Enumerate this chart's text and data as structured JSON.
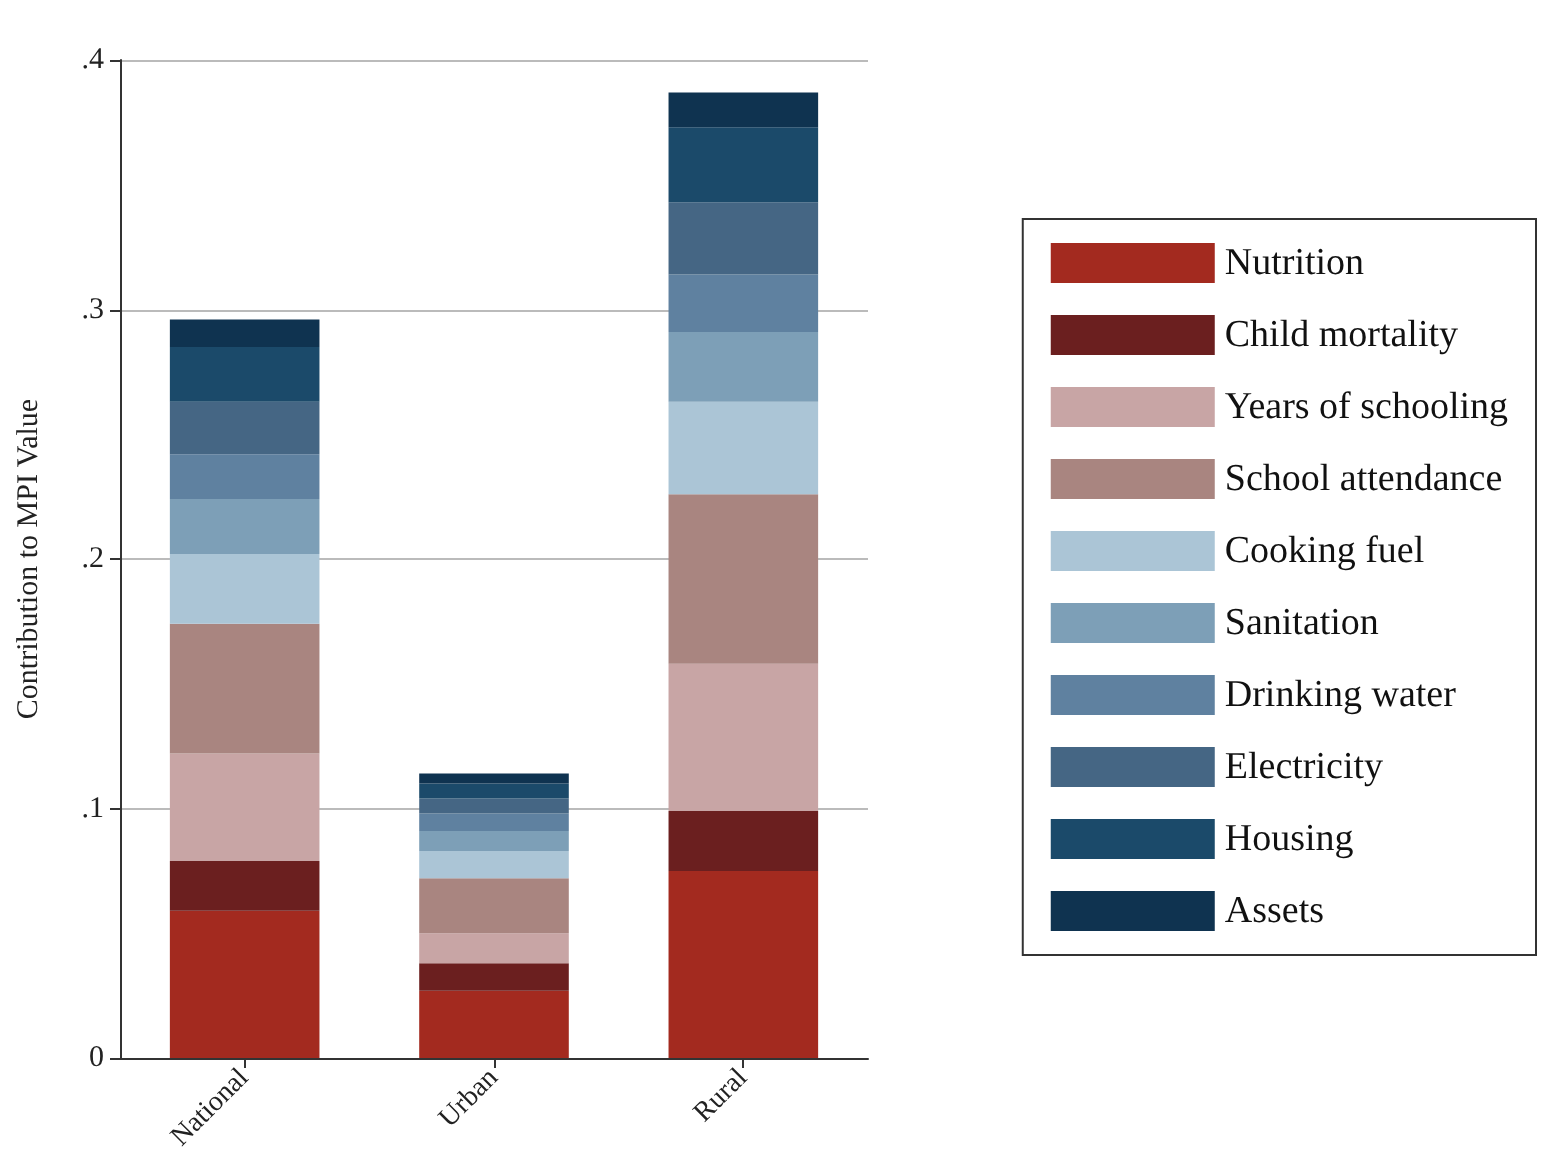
{
  "chart_data": {
    "type": "bar",
    "stacked": true,
    "ylabel": "Contribution to MPI Value",
    "categories": [
      "National",
      "Urban",
      "Rural"
    ],
    "series": [
      {
        "name": "Nutrition",
        "color": "#a32a1f",
        "values": [
          0.059,
          0.027,
          0.075
        ]
      },
      {
        "name": "Child mortality",
        "color": "#6b1f1f",
        "values": [
          0.02,
          0.011,
          0.024
        ]
      },
      {
        "name": "Years of schooling",
        "color": "#c8a5a5",
        "values": [
          0.043,
          0.012,
          0.059
        ]
      },
      {
        "name": "School attendance",
        "color": "#a98580",
        "values": [
          0.052,
          0.022,
          0.068
        ]
      },
      {
        "name": "Cooking fuel",
        "color": "#abc5d6",
        "values": [
          0.028,
          0.011,
          0.037
        ]
      },
      {
        "name": "Sanitation",
        "color": "#7d9fb7",
        "values": [
          0.022,
          0.008,
          0.028
        ]
      },
      {
        "name": "Drinking water",
        "color": "#5f81a0",
        "values": [
          0.018,
          0.007,
          0.023
        ]
      },
      {
        "name": "Electricity",
        "color": "#456684",
        "values": [
          0.021,
          0.006,
          0.029
        ]
      },
      {
        "name": "Housing",
        "color": "#1b4a6a",
        "values": [
          0.022,
          0.006,
          0.03
        ]
      },
      {
        "name": "Assets",
        "color": "#0f3350",
        "values": [
          0.011,
          0.004,
          0.014
        ]
      }
    ],
    "ylim": [
      0,
      0.4
    ],
    "yticks": [
      {
        "value": 0,
        "label": "0"
      },
      {
        "value": 0.1,
        "label": ".1"
      },
      {
        "value": 0.2,
        "label": ".2"
      },
      {
        "value": 0.3,
        "label": ".3"
      },
      {
        "value": 0.4,
        "label": ".4"
      }
    ],
    "grid": "y",
    "legend": "right"
  }
}
